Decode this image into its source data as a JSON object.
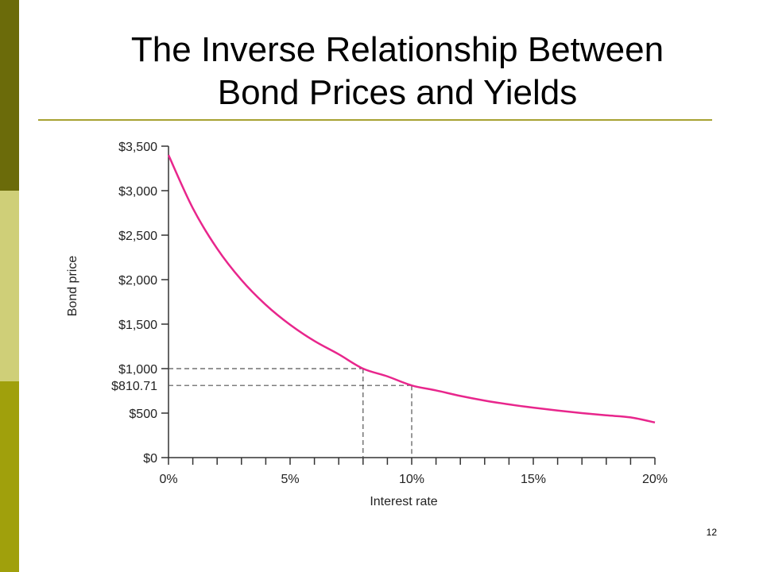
{
  "slide": {
    "title_line1": "The Inverse Relationship Between",
    "title_line2": "Bond Prices and Yields",
    "page_number": "12"
  },
  "colors": {
    "sidebar_dark": "#6b6b0a",
    "sidebar_light": "#cfcf78",
    "sidebar_olive": "#a0a00c",
    "title_rule": "#a7a232",
    "curve": "#e8268c"
  },
  "chart_data": {
    "type": "line",
    "title": "",
    "xlabel": "Interest rate",
    "ylabel": "Bond price",
    "xlim": [
      0,
      20
    ],
    "ylim": [
      0,
      3500
    ],
    "x_ticks": [
      0,
      5,
      10,
      15,
      20
    ],
    "x_tick_labels": [
      "0%",
      "5%",
      "10%",
      "15%",
      "20%"
    ],
    "x_minor_step": 1,
    "y_ticks": [
      0,
      500,
      1000,
      1500,
      2000,
      2500,
      3000,
      3500
    ],
    "y_tick_labels": [
      "$0",
      "$500",
      "$1,000",
      "$1,500",
      "$2,000",
      "$2,500",
      "$3,000",
      "$3,500"
    ],
    "extra_y_label": {
      "value": 810.71,
      "label": "$810.71"
    },
    "grid": false,
    "series": [
      {
        "x": [
          0,
          1,
          2,
          3,
          4,
          5,
          6,
          7,
          8,
          9,
          10,
          11,
          12,
          13,
          14,
          15,
          16,
          17,
          18,
          19,
          20
        ],
        "values": [
          3400,
          2803,
          2349,
          1996,
          1717,
          1493,
          1311,
          1161,
          1000,
          913,
          811,
          755,
          693,
          641,
          598,
          561,
          529,
          500,
          475,
          452,
          395
        ]
      }
    ],
    "reference_lines": [
      {
        "x": 8,
        "y": 1000
      },
      {
        "x": 10,
        "y": 810.71
      }
    ]
  }
}
